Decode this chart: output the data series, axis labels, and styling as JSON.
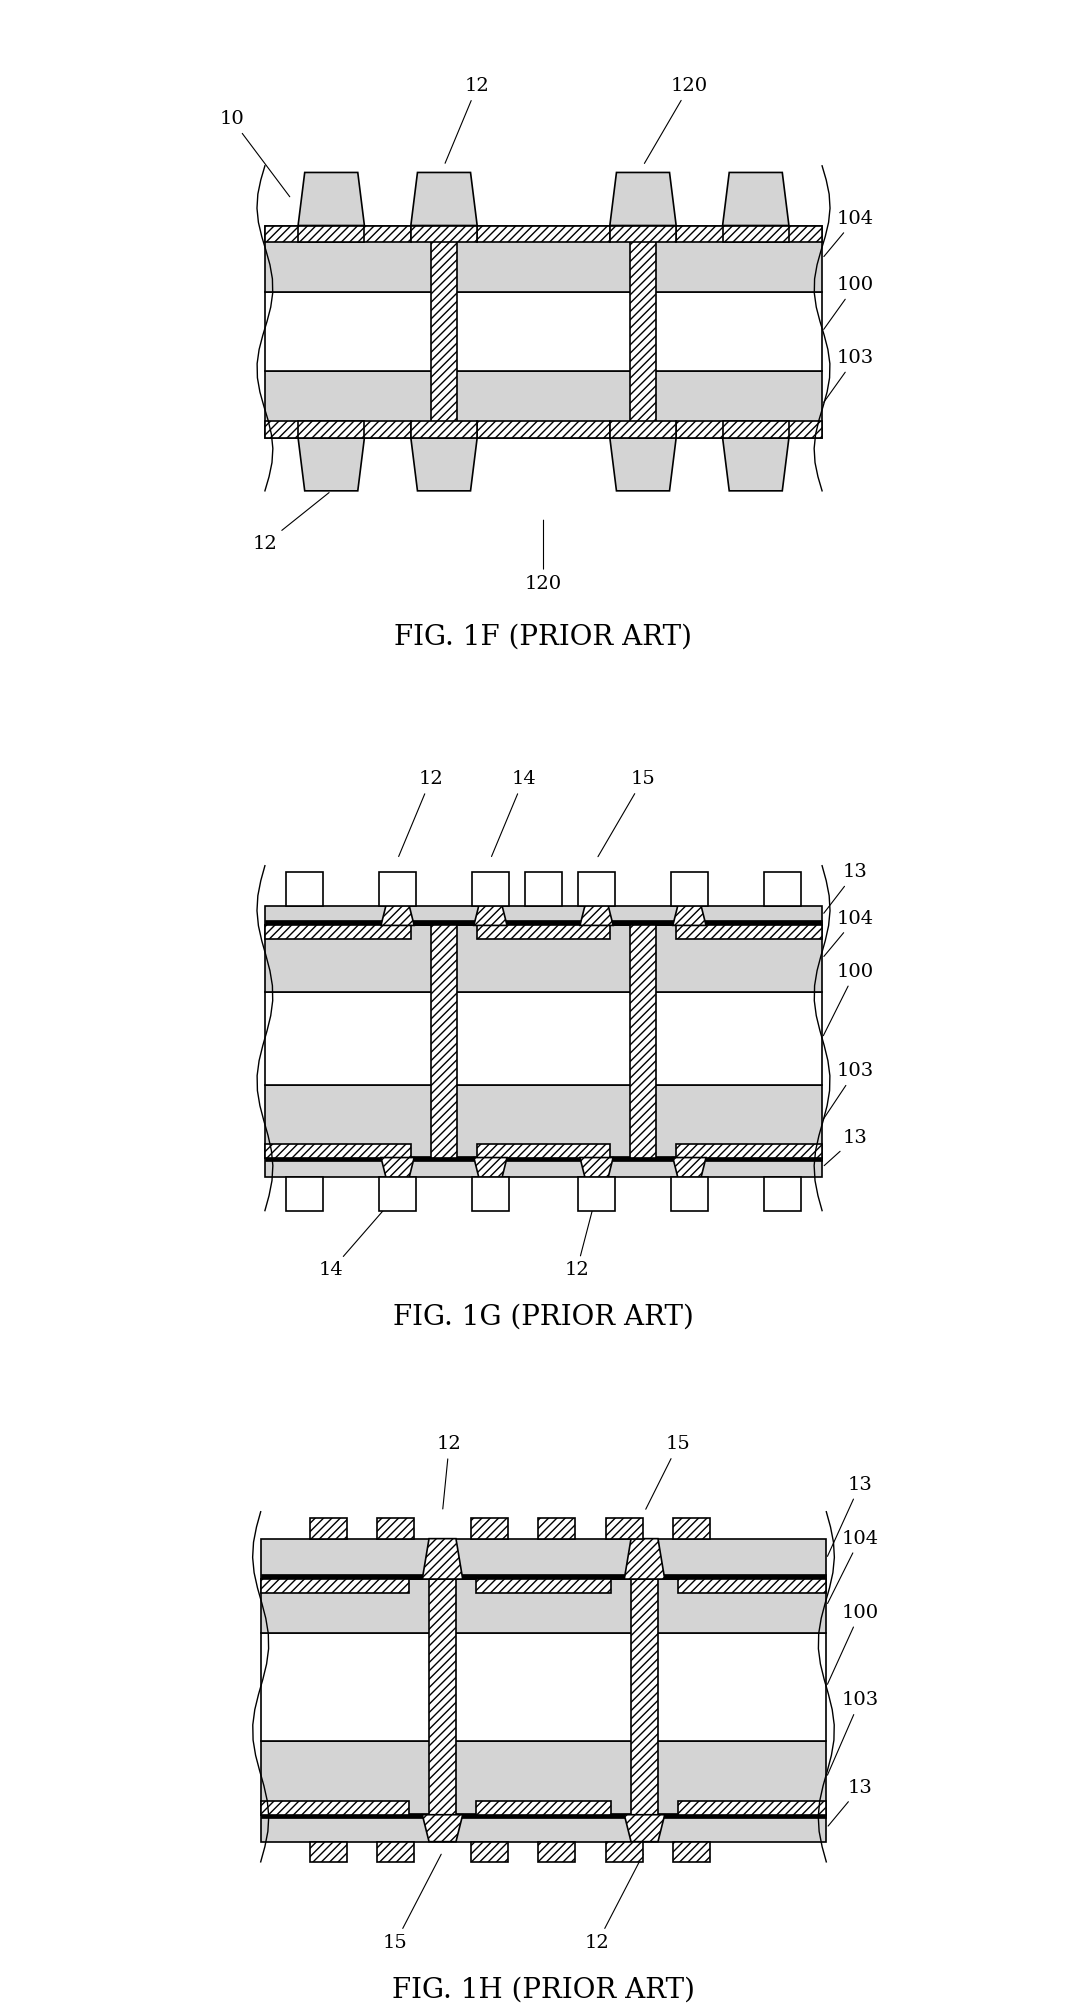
{
  "bg_color": "#ffffff",
  "lc": "#000000",
  "speckle": "#d4d4d4",
  "white": "#ffffff",
  "fig_labels": [
    "FIG. 1F (PRIOR ART)",
    "FIG. 1G (PRIOR ART)",
    "FIG. 1H (PRIOR ART)"
  ],
  "fig_label_fontsize": 20,
  "ann_fontsize": 14,
  "lw": 1.2,
  "hatch_density": "////"
}
